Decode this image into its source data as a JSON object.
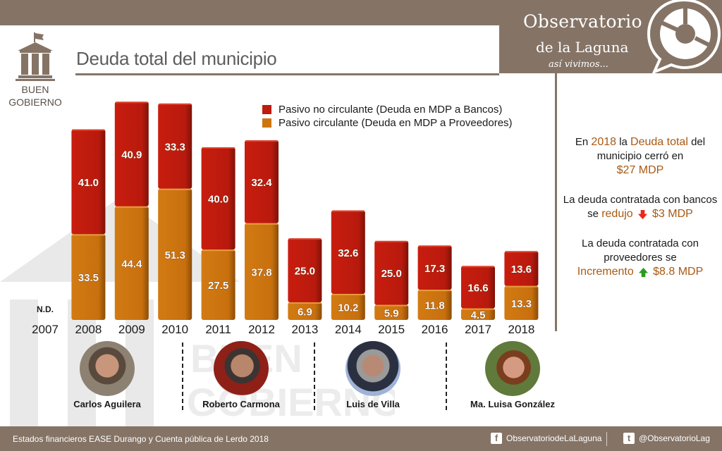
{
  "brand": {
    "name_line1": "Observatorio",
    "name_line2": "de la Laguna",
    "tagline": "así vivimos..."
  },
  "section": {
    "icon": "government-building-icon",
    "label_line1": "BUEN",
    "label_line2": "GOBIERNO"
  },
  "header": {
    "title": "Deuda total del municipio"
  },
  "colors": {
    "brand": "#857466",
    "bancos": "#be1c0e",
    "proveedores": "#cc7410",
    "highlight": "#a85a14",
    "down_arrow": "#e8291c",
    "up_arrow": "#2a9b1f"
  },
  "chart_data": {
    "type": "bar",
    "stacked": true,
    "title": "Deuda total del municipio",
    "xlabel": "",
    "ylabel": "MDP",
    "categories": [
      "2007",
      "2008",
      "2009",
      "2010",
      "2011",
      "2012",
      "2013",
      "2014",
      "2015",
      "2016",
      "2017",
      "2018"
    ],
    "series": [
      {
        "name": "Pasivo circulante (Deuda en MDP a Proveedores)",
        "key": "proveedores",
        "values": [
          null,
          33.5,
          44.4,
          51.3,
          27.5,
          37.8,
          6.9,
          10.2,
          5.9,
          11.8,
          4.5,
          13.3
        ]
      },
      {
        "name": "Pasivo no circulante (Deuda en MDP a Bancos)",
        "key": "bancos",
        "values": [
          null,
          41.0,
          40.9,
          33.3,
          40.0,
          32.4,
          25.0,
          32.6,
          25.0,
          17.3,
          16.6,
          13.6
        ]
      }
    ],
    "value_labels": [
      {
        "bancos": "",
        "proveedores": ""
      },
      {
        "bancos": "41.0",
        "proveedores": "33.5"
      },
      {
        "bancos": "40.9",
        "proveedores": "44.4"
      },
      {
        "bancos": "33.3",
        "proveedores": "51.3"
      },
      {
        "bancos": "40.0",
        "proveedores": "27.5"
      },
      {
        "bancos": "32.4",
        "proveedores": "37.8"
      },
      {
        "bancos": "25.0",
        "proveedores": "6.9"
      },
      {
        "bancos": "32.6",
        "proveedores": "10.2"
      },
      {
        "bancos": "25.0",
        "proveedores": "5.9"
      },
      {
        "bancos": "17.3",
        "proveedores": "11.8"
      },
      {
        "bancos": "16.6",
        "proveedores": "4.5"
      },
      {
        "bancos": "13.6",
        "proveedores": "13.3"
      }
    ],
    "missing_label": "N.D.",
    "missing_category": "2007",
    "legend": [
      "Pasivo no circulante (Deuda en MDP a Bancos)",
      "Pasivo circulante (Deuda en MDP a Proveedores)"
    ],
    "legend_position": "top-right",
    "ylim": [
      0,
      100
    ],
    "grid": false
  },
  "facts": {
    "f1": {
      "pre": "En",
      "year": "2018",
      "mid": "la",
      "key": "Deuda total",
      "post": "del",
      "line2": "municipio cerró en",
      "amount": "$27 MDP"
    },
    "f2": {
      "line1": "La deuda contratada con bancos",
      "pre": "se",
      "verb": "redujo",
      "arrow": "down-arrow-icon",
      "amount": "$3 MDP"
    },
    "f3": {
      "line1": "La deuda contratada con",
      "line2": "proveedores se",
      "verb": "Incremento",
      "arrow": "up-arrow-icon",
      "amount": "$8.8 MDP"
    }
  },
  "mayors": [
    {
      "name": "Carlos Aguilera"
    },
    {
      "name": "Roberto Carmona"
    },
    {
      "name": "Luis de Villa"
    },
    {
      "name": "Ma. Luisa González"
    }
  ],
  "watermark": {
    "line1": "BUEN",
    "line2": "GOBIERNO"
  },
  "footer": {
    "source": "Estados financieros EASE Durango y Cuenta pública de Lerdo 2018",
    "facebook_icon": "facebook-icon",
    "facebook": "ObservatoriodeLaLaguna",
    "twitter_icon": "twitter-icon",
    "twitter": "@ObservatorioLag"
  }
}
